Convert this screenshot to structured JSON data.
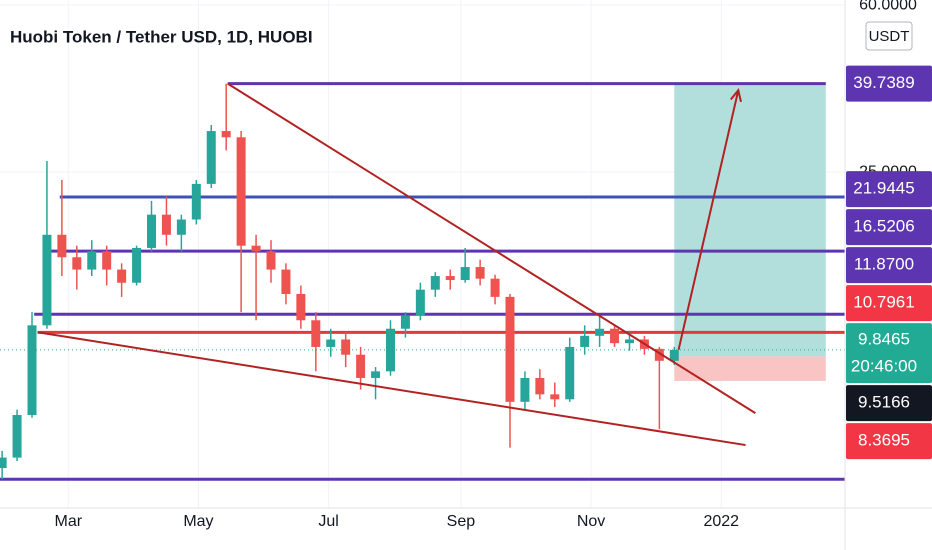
{
  "chart_data": {
    "type": "candlestick",
    "title": "Huobi Token / Tether USD, 1D, HUOBI",
    "currency": "USDT",
    "x": [
      28,
      35,
      42,
      49,
      56,
      63,
      70,
      77,
      84,
      91,
      98,
      105,
      112,
      119,
      126,
      133,
      140,
      147,
      154,
      161,
      168,
      175,
      182,
      189,
      196,
      203,
      210,
      217,
      224,
      231,
      238,
      245,
      252,
      259,
      266,
      273,
      280,
      287,
      294,
      301,
      308,
      315,
      322,
      329,
      336,
      343
    ],
    "open": [
      5.3,
      5.6,
      7.0,
      11.2,
      18,
      16,
      15,
      16.5,
      15,
      14,
      16.8,
      20,
      18,
      19.5,
      23.5,
      31,
      30,
      17,
      16.5,
      15,
      13.2,
      11.5,
      10,
      10.4,
      9.6,
      8.5,
      8.8,
      11,
      11.8,
      13.5,
      14.5,
      14.2,
      15.2,
      14.3,
      13,
      7.5,
      8.5,
      7.8,
      7.6,
      10,
      10.6,
      11,
      10.2,
      10.4,
      9.9,
      9.3
    ],
    "high": [
      5.8,
      7.2,
      12,
      26.5,
      24,
      17,
      17.5,
      17,
      15.5,
      17,
      21.5,
      22,
      20,
      24,
      32,
      39.7389,
      31,
      18,
      17.5,
      15.5,
      13.8,
      12,
      11,
      10.8,
      10,
      9,
      11.5,
      12,
      14,
      14.8,
      15,
      16.8,
      15.8,
      14.6,
      13.2,
      8.8,
      8.9,
      8.3,
      10.5,
      11.2,
      11.8,
      11.2,
      10.8,
      10.6,
      10,
      10
    ],
    "low": [
      5.0,
      5.5,
      6.9,
      11,
      14.5,
      13.5,
      14.5,
      13.8,
      13,
      13.8,
      16.5,
      17,
      16.5,
      19,
      23,
      28,
      12,
      11.5,
      14,
      12.5,
      11,
      8.8,
      9.5,
      9,
      8,
      7.6,
      8.6,
      10.5,
      11.5,
      13,
      13.5,
      14,
      13.8,
      12.5,
      5.9,
      7.2,
      7.6,
      7.3,
      7.5,
      9.6,
      10,
      10,
      9.8,
      9.6,
      6.5,
      9.1
    ],
    "close": [
      5.6,
      7.0,
      11.2,
      18,
      16,
      15,
      16.5,
      15,
      14,
      16.8,
      20,
      18,
      19.5,
      23.5,
      31,
      30,
      17,
      16.5,
      15,
      13.2,
      11.5,
      10,
      10.4,
      9.6,
      8.5,
      8.8,
      11,
      11.8,
      13.5,
      14.5,
      14.2,
      15.2,
      14.3,
      13,
      7.5,
      8.5,
      7.8,
      7.6,
      10,
      10.6,
      11,
      10.2,
      10.4,
      9.9,
      9.3,
      9.8465
    ],
    "up_color": "#26a69a",
    "down_color": "#ef5350",
    "xlim": [
      27,
      423
    ],
    "xticks": [
      {
        "value": 59,
        "label": "Mar"
      },
      {
        "value": 120,
        "label": "May"
      },
      {
        "value": 181,
        "label": "Jul"
      },
      {
        "value": 243,
        "label": "Sep"
      },
      {
        "value": 304,
        "label": "Nov"
      },
      {
        "value": 365,
        "label": "2022"
      }
    ],
    "ylim": [
      4.3,
      61.6
    ],
    "yticks": [
      {
        "value": 25,
        "label": "25.0000"
      },
      {
        "value": 60,
        "label": "60.0000"
      }
    ],
    "log_scale": true,
    "grid": true,
    "levels": [
      {
        "value": 39.7389,
        "x": [
          133.7,
          414
        ],
        "color": "#5e35b1"
      },
      {
        "value": 21.9445,
        "x": [
          55,
          423
        ],
        "color": "#3f51b5"
      },
      {
        "value": 16.5206,
        "x": [
          50,
          423
        ],
        "color": "#5e35b1"
      },
      {
        "value": 11.87,
        "x": [
          43,
          423
        ],
        "color": "#5e35b1"
      },
      {
        "value": 10.7961,
        "x": [
          44.6,
          423
        ],
        "color": "#e53935"
      },
      {
        "value": 5.0,
        "x": [
          27,
          423
        ],
        "color": "#5e35b1"
      }
    ],
    "trendlines": [
      {
        "x": [
          133.7,
          381
        ],
        "y": [
          39.7389,
          7.07
        ],
        "color": "#b22222"
      },
      {
        "x": [
          44.6,
          376.4
        ],
        "y": [
          10.8,
          5.98
        ],
        "color": "#b22222"
      }
    ],
    "arrow": {
      "x": [
        345,
        373
      ],
      "y": [
        9.85,
        38.4
      ],
      "color": "#b22222"
    },
    "position": {
      "x": [
        343,
        414
      ],
      "entry": 9.5166,
      "stop": 8.3695,
      "target": 39.7389,
      "profit_color": "#b2dfdb",
      "loss_color": "#f8c4c4"
    },
    "price_labels": [
      {
        "value": 39.7389,
        "label": "39.7389",
        "color": "#5e35b1"
      },
      {
        "value": 21.9445,
        "label": "21.9445",
        "color": "#5e35b1"
      },
      {
        "value": 16.5206,
        "label": "16.5206",
        "color": "#5e35b1"
      },
      {
        "value": 11.87,
        "label": "11.8700",
        "color": "#5e35b1"
      },
      {
        "value": 10.7961,
        "label": "10.7961",
        "color": "#f23645"
      },
      {
        "value": 9.8465,
        "label": "9.8465",
        "color": "#22ab94",
        "countdown": "20:46:00"
      },
      {
        "value": 9.5166,
        "label": "9.5166",
        "color": "#131722"
      },
      {
        "value": 8.3695,
        "label": "8.3695",
        "color": "#f23645"
      }
    ]
  }
}
